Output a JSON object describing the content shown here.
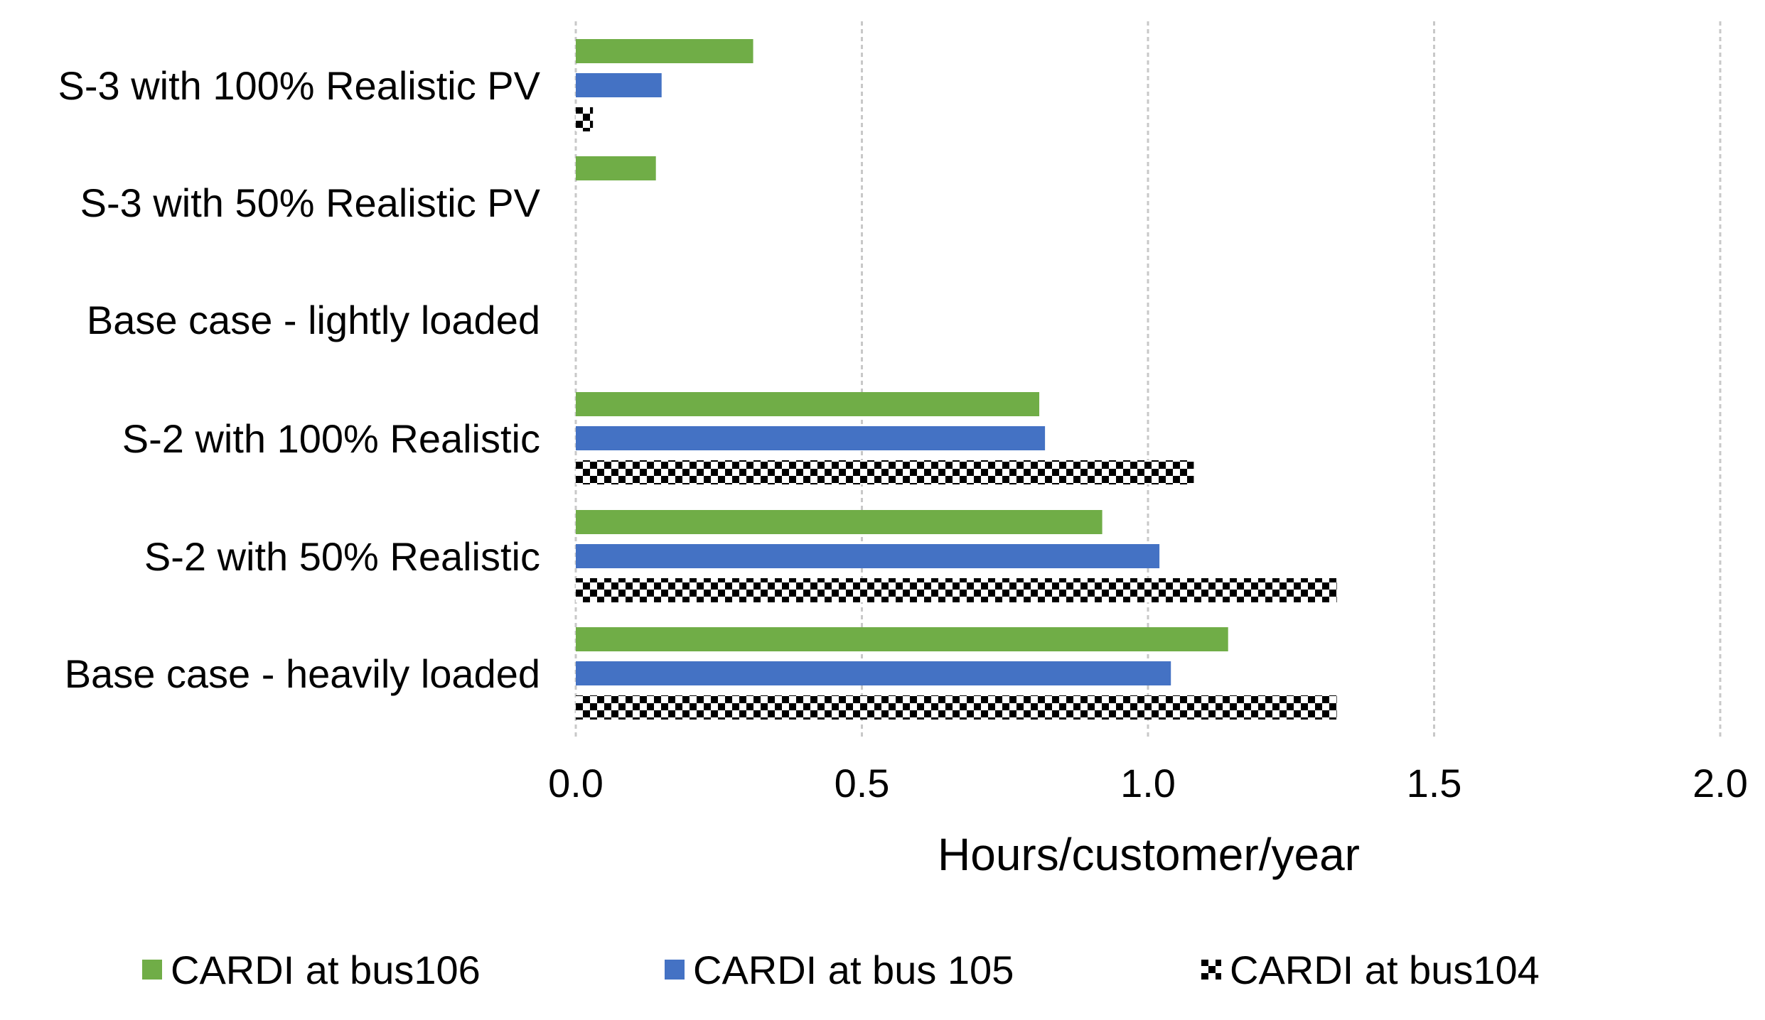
{
  "chart_data": {
    "type": "bar",
    "orientation": "horizontal",
    "title": "",
    "xlabel": "Hours/customer/year",
    "ylabel": "",
    "xlim": [
      0,
      2
    ],
    "x_ticks": [
      "0.0",
      "0.5",
      "1.0",
      "1.5",
      "2.0"
    ],
    "grid": "vertical dashed",
    "legend_position": "bottom",
    "categories": [
      "S-3 with 100% Realistic PV",
      "S-3 with 50% Realistic PV",
      "Base case - lightly loaded",
      "S-2 with 100% Realistic",
      "S-2 with 50% Realistic",
      "Base case - heavily loaded"
    ],
    "series": [
      {
        "name": "CARDI at bus106",
        "color": "#70ad47",
        "pattern": "solid",
        "values": [
          0.31,
          0.14,
          0.0,
          0.81,
          0.92,
          1.14
        ]
      },
      {
        "name": "CARDI at bus 105",
        "color": "#4472c4",
        "pattern": "solid",
        "values": [
          0.15,
          0.0,
          0.0,
          0.82,
          1.02,
          1.04
        ]
      },
      {
        "name": "CARDI at bus104",
        "color": "#000000",
        "pattern": "checker",
        "values": [
          0.03,
          0.0,
          0.0,
          1.08,
          1.33,
          1.33
        ]
      }
    ]
  }
}
